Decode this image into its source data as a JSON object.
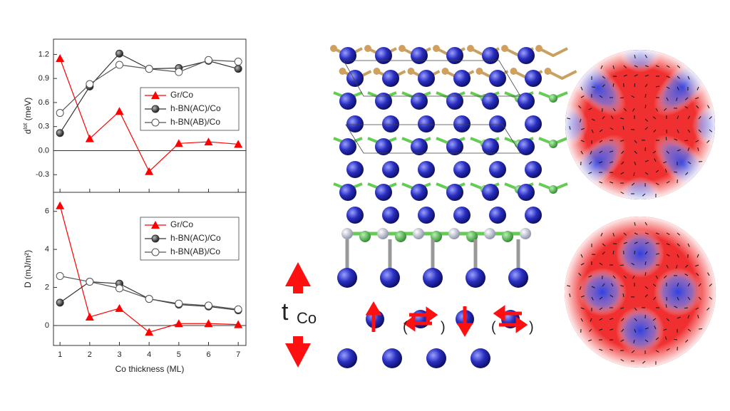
{
  "chart_data": [
    {
      "type": "line",
      "ylabel": "d",
      "ylabel_sup": "tot",
      "ylabel_unit": " (meV)",
      "x": [
        1,
        2,
        3,
        4,
        5,
        6,
        7
      ],
      "xlim": [
        0.78,
        7.26
      ],
      "xticks": [
        1,
        2,
        3,
        4,
        5,
        6,
        7
      ],
      "xtick_labels_shown": false,
      "ylim": [
        -0.52,
        1.39
      ],
      "yticks": [
        -0.3,
        {
          "value": 0,
          "label": "0.0"
        },
        0.3,
        0.6,
        0.9,
        1.2
      ],
      "zero_line": true,
      "legend": "right",
      "series": [
        {
          "name": "Gr/Co",
          "color": "#ff0000",
          "marker": "triangle",
          "values": [
            1.15,
            0.15,
            0.49,
            -0.26,
            0.09,
            0.11,
            0.08
          ]
        },
        {
          "name": "h-BN(AC)/Co",
          "color": "#333333",
          "marker": "ball",
          "values": [
            0.22,
            0.8,
            1.21,
            1.02,
            1.03,
            1.12,
            1.02
          ]
        },
        {
          "name": "h-BN(AB)/Co",
          "color": "#555555",
          "marker": "open",
          "values": [
            0.47,
            0.83,
            1.07,
            1.02,
            0.98,
            1.13,
            1.11
          ]
        }
      ]
    },
    {
      "type": "line",
      "ylabel": "D (mJ/m²)",
      "xlabel": "Co thickness (ML)",
      "x": [
        1,
        2,
        3,
        4,
        5,
        6,
        7
      ],
      "xlim": [
        0.78,
        7.26
      ],
      "xticks": [
        1,
        2,
        3,
        4,
        5,
        6,
        7
      ],
      "xtick_labels_shown": true,
      "ylim": [
        -1.05,
        7.0
      ],
      "yticks": [
        0,
        2,
        4,
        6
      ],
      "zero_line": true,
      "legend": "right",
      "series": [
        {
          "name": "Gr/Co",
          "color": "#ff0000",
          "marker": "triangle",
          "values": [
            6.3,
            0.45,
            0.9,
            -0.35,
            0.1,
            0.1,
            0.05
          ]
        },
        {
          "name": "h-BN(AC)/Co",
          "color": "#333333",
          "marker": "ball",
          "values": [
            1.2,
            2.3,
            2.2,
            1.4,
            1.1,
            1.0,
            0.8
          ]
        },
        {
          "name": "h-BN(AB)/Co",
          "color": "#555555",
          "marker": "open",
          "values": [
            2.6,
            2.3,
            1.95,
            1.4,
            1.15,
            1.05,
            0.85
          ]
        }
      ]
    }
  ],
  "annotations": {
    "t_label": "t",
    "t_sub": "Co",
    "parens": [
      "(",
      ")",
      "(",
      ")"
    ]
  }
}
